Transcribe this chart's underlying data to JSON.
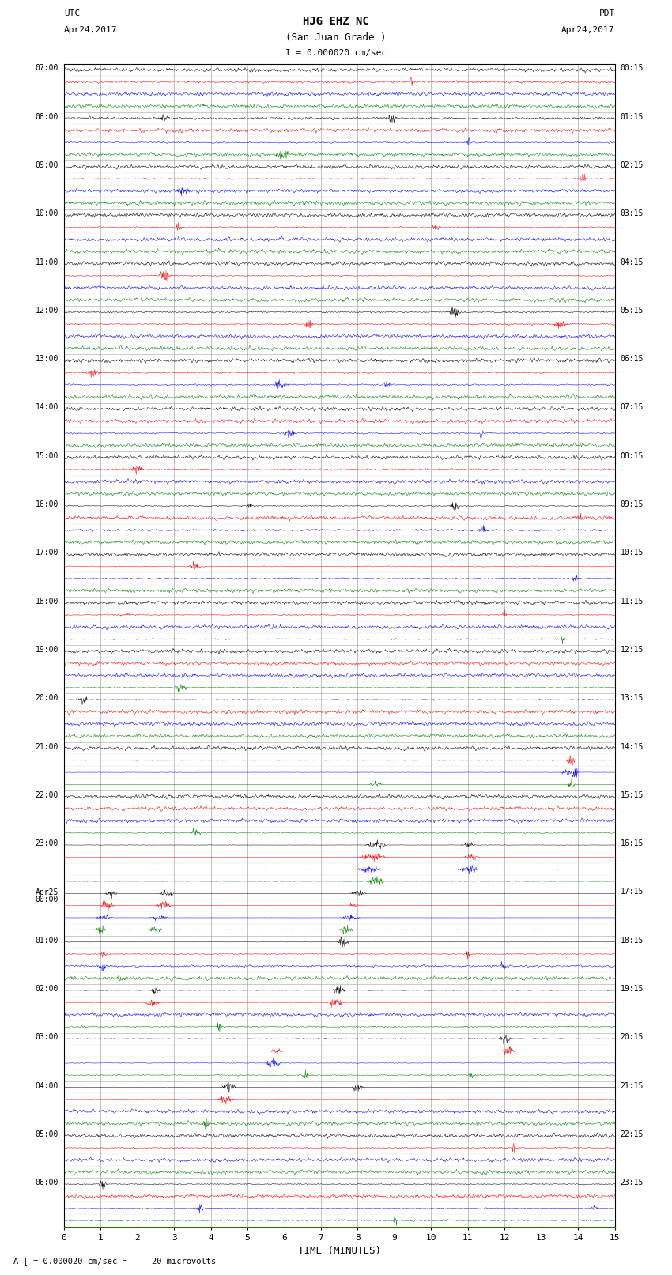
{
  "title_line1": "HJG EHZ NC",
  "title_line2": "(San Juan Grade )",
  "scale_text": "I = 0.000020 cm/sec",
  "left_label_top": "UTC",
  "left_label_date": "Apr24,2017",
  "right_label_top": "PDT",
  "right_label_date": "Apr24,2017",
  "xlabel": "TIME (MINUTES)",
  "bottom_note": "= 0.000020 cm/sec =     20 microvolts",
  "bottom_note_prefix": "A [",
  "utc_hour_labels": [
    "07:00",
    "08:00",
    "09:00",
    "10:00",
    "11:00",
    "12:00",
    "13:00",
    "14:00",
    "15:00",
    "16:00",
    "17:00",
    "18:00",
    "19:00",
    "20:00",
    "21:00",
    "22:00",
    "23:00",
    "Apr25\n00:00",
    "01:00",
    "02:00",
    "03:00",
    "04:00",
    "05:00",
    "06:00"
  ],
  "pdt_hour_labels": [
    "00:15",
    "01:15",
    "02:15",
    "03:15",
    "04:15",
    "05:15",
    "06:15",
    "07:15",
    "08:15",
    "09:15",
    "10:15",
    "11:15",
    "12:15",
    "13:15",
    "14:15",
    "15:15",
    "16:15",
    "17:15",
    "18:15",
    "19:15",
    "20:15",
    "21:15",
    "22:15",
    "23:15"
  ],
  "trace_colors": [
    "black",
    "red",
    "blue",
    "green"
  ],
  "n_hours": 24,
  "traces_per_hour": 4,
  "x_min": 0,
  "x_max": 15,
  "x_ticks": [
    0,
    1,
    2,
    3,
    4,
    5,
    6,
    7,
    8,
    9,
    10,
    11,
    12,
    13,
    14,
    15
  ],
  "background_color": "white",
  "grid_color": "#aaaaaa",
  "fig_width": 8.5,
  "fig_height": 16.13,
  "trace_amplitude": 0.12,
  "trace_linewidth": 0.35,
  "n_points": 1500
}
